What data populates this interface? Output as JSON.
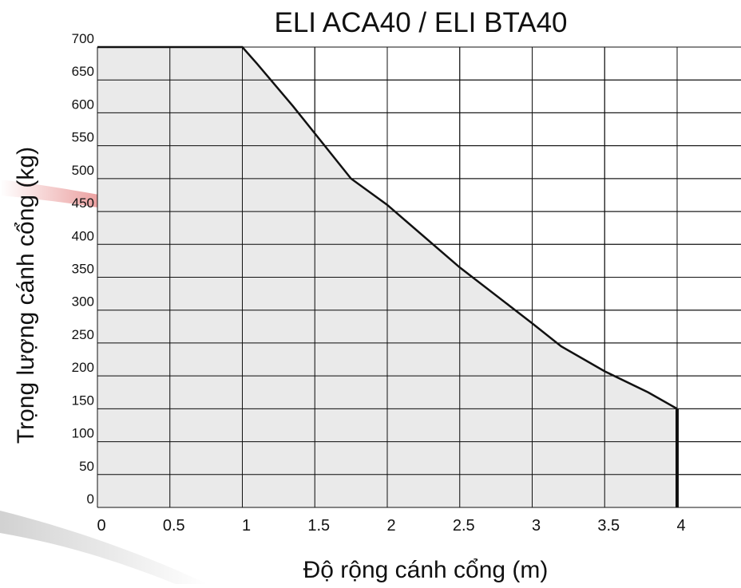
{
  "chart_data": {
    "type": "area",
    "title": "ELI ACA40 / ELI BTA40",
    "xlabel": "Độ rộng cánh cổng (m)",
    "ylabel": "Trọng lượng cánh cổng (kg)",
    "xlim": [
      0,
      4.5
    ],
    "ylim": [
      0,
      700
    ],
    "x_ticks": [
      0,
      0.5,
      1,
      1.5,
      2,
      2.5,
      3,
      3.5,
      4
    ],
    "x_tick_labels": [
      "0",
      "0.5",
      "1",
      "1.5",
      "2",
      "2.5",
      "3",
      "3.5",
      "4"
    ],
    "y_ticks": [
      0,
      50,
      100,
      150,
      200,
      250,
      300,
      350,
      400,
      450,
      500,
      550,
      600,
      650,
      700
    ],
    "y_tick_labels": [
      "0",
      "50",
      "100",
      "150",
      "200",
      "250",
      "300",
      "350",
      "400",
      "450",
      "500",
      "550",
      "600",
      "650",
      "700"
    ],
    "grid": true,
    "colors": {
      "fill": "#e6e6e6",
      "line": "#111111",
      "grid": "#111111"
    },
    "series": [
      {
        "x": [
          0,
          1,
          1.1,
          1.35,
          1.75,
          2.0,
          2.5,
          3.0,
          3.2,
          3.5,
          3.8,
          4.0,
          4.0
        ],
        "y": [
          700,
          700,
          675,
          610,
          500,
          460,
          365,
          280,
          245,
          207,
          175,
          150,
          0
        ]
      }
    ]
  }
}
